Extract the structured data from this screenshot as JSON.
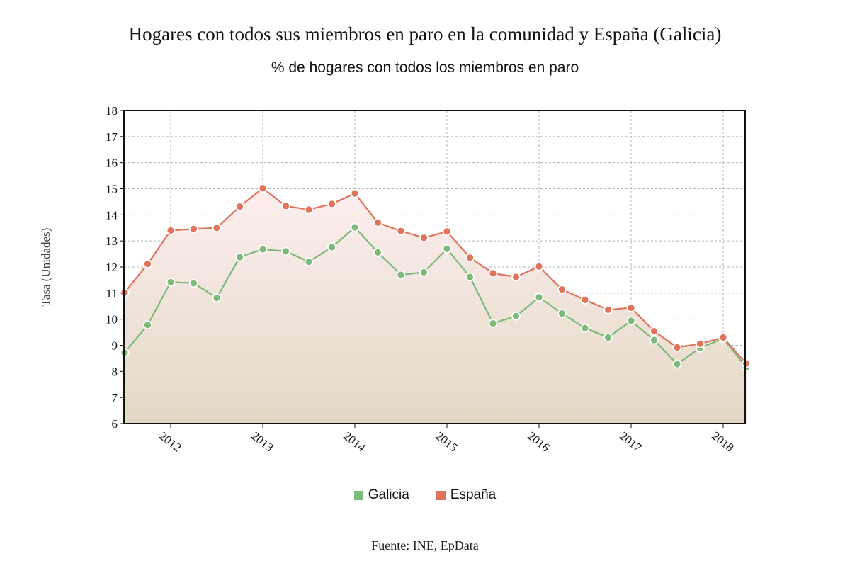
{
  "title": "Hogares con todos sus miembros en paro en la comunidad y España (Galicia)",
  "subtitle": "% de hogares con todos los miembros en paro",
  "source": "Fuente: INE, EpData",
  "colors": {
    "galicia": "#7cba7a",
    "espana": "#e0735a",
    "fill_top": "#fdeeee",
    "fill_bottom": "#e3d8c6"
  },
  "chart_data": {
    "type": "line",
    "ylabel": "Tasa (Unidades)",
    "ylim": [
      6,
      18
    ],
    "yticks": [
      "6",
      "7",
      "8",
      "9",
      "10",
      "11",
      "12",
      "13",
      "14",
      "15",
      "16",
      "17",
      "18"
    ],
    "xtick_labels": [
      "2012",
      "2013",
      "2014",
      "2015",
      "2016",
      "2017",
      "2018"
    ],
    "x": [
      "2011-T3",
      "2011-T4",
      "2012-T1",
      "2012-T2",
      "2012-T3",
      "2012-T4",
      "2013-T1",
      "2013-T2",
      "2013-T3",
      "2013-T4",
      "2014-T1",
      "2014-T2",
      "2014-T3",
      "2014-T4",
      "2015-T1",
      "2015-T2",
      "2015-T3",
      "2015-T4",
      "2016-T1",
      "2016-T2",
      "2016-T3",
      "2016-T4",
      "2017-T1",
      "2017-T2",
      "2017-T3",
      "2017-T4",
      "2018-T1",
      "2018-T2"
    ],
    "grid": true,
    "legend_position": "bottom",
    "series": [
      {
        "name": "Galicia",
        "values": [
          8.72,
          9.78,
          11.42,
          11.38,
          10.82,
          12.38,
          12.68,
          12.6,
          12.2,
          12.76,
          13.52,
          12.56,
          11.7,
          11.8,
          12.7,
          11.62,
          9.84,
          10.12,
          10.84,
          10.22,
          9.66,
          9.3,
          9.94,
          9.2,
          8.28,
          8.9,
          9.26,
          8.16
        ]
      },
      {
        "name": "España",
        "values": [
          11.02,
          12.12,
          13.4,
          13.46,
          13.5,
          14.32,
          15.02,
          14.34,
          14.2,
          14.42,
          14.82,
          13.7,
          13.38,
          13.12,
          13.36,
          12.36,
          11.76,
          11.62,
          12.02,
          11.14,
          10.74,
          10.36,
          10.44,
          9.54,
          8.92,
          9.06,
          9.3,
          8.3
        ]
      }
    ]
  }
}
